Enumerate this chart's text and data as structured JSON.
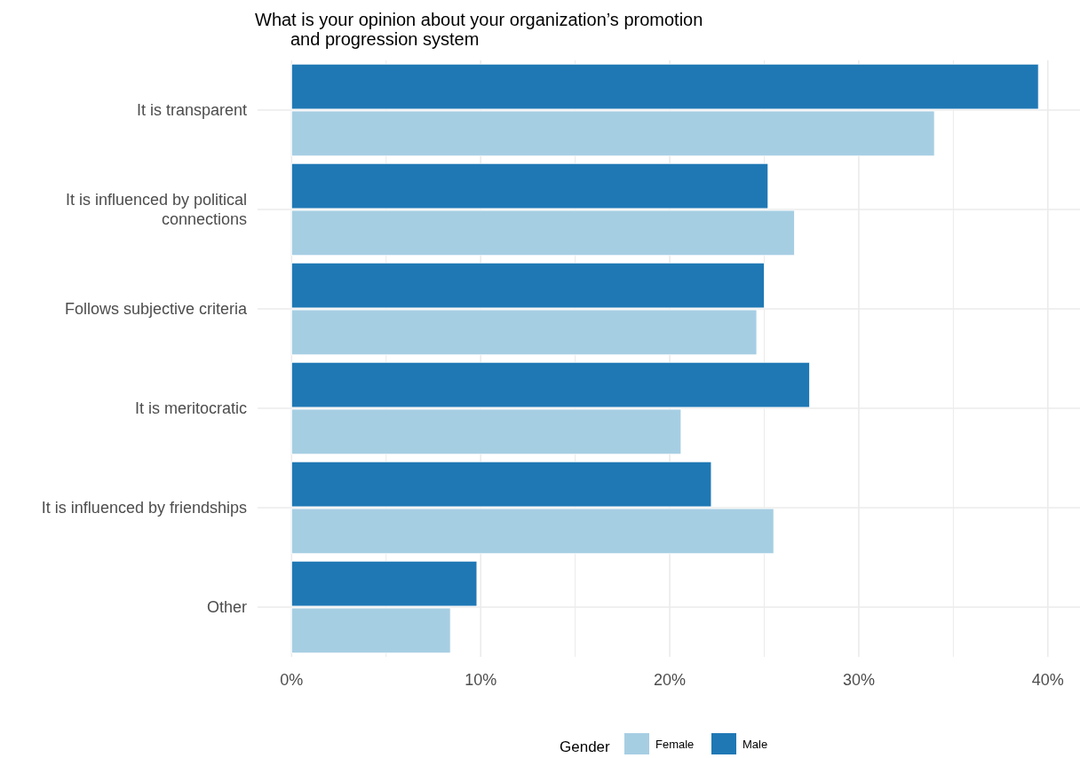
{
  "chart_data": {
    "type": "bar",
    "orientation": "horizontal",
    "title": "What is your opinion about your organization’s promotion\nand progression system",
    "categories": [
      "It is transparent",
      "It is influenced by political connections",
      "Follows subjective criteria",
      "It is meritocratic",
      "It is influenced by friendships",
      "Other"
    ],
    "series": [
      {
        "name": "Female",
        "color": "#a6cee3",
        "values": [
          34.0,
          26.6,
          24.6,
          20.6,
          25.5,
          8.4
        ]
      },
      {
        "name": "Male",
        "color": "#1f78b4",
        "values": [
          39.5,
          25.2,
          25.0,
          27.4,
          22.2,
          9.8
        ]
      }
    ],
    "xlim": [
      -1.8,
      41.7
    ],
    "xticks": [
      {
        "value": 0,
        "label": "0%"
      },
      {
        "value": 5,
        "label": null
      },
      {
        "value": 10,
        "label": "10%"
      },
      {
        "value": 15,
        "label": null
      },
      {
        "value": 20,
        "label": "20%"
      },
      {
        "value": 25,
        "label": null
      },
      {
        "value": 30,
        "label": "30%"
      },
      {
        "value": 35,
        "label": null
      },
      {
        "value": 40,
        "label": "40%"
      }
    ],
    "grid": true,
    "legend": "bottom",
    "legend_title": "Gender"
  }
}
